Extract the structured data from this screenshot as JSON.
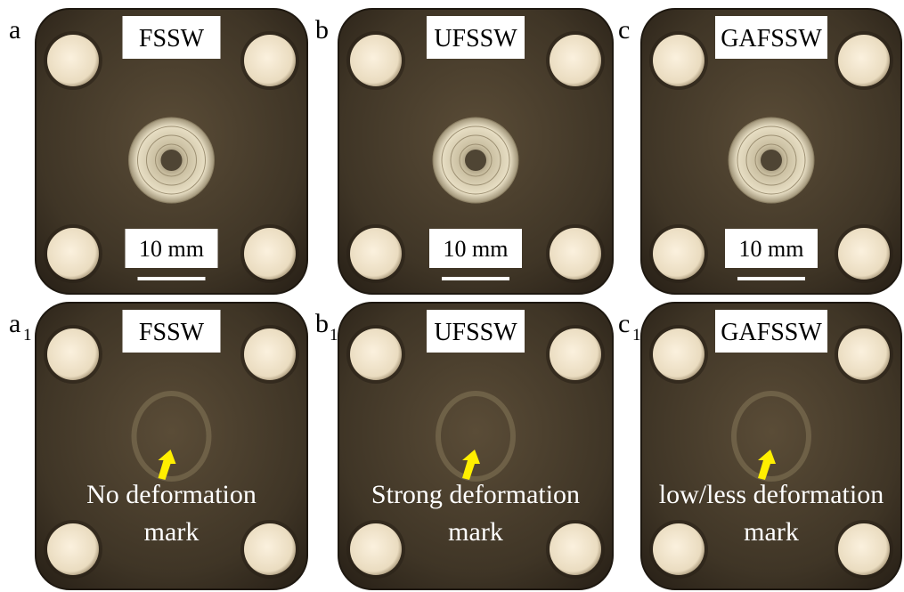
{
  "panels": [
    {
      "label": "a",
      "title": "FSSW",
      "scale": "10 mm"
    },
    {
      "label": "b",
      "title": "UFSSW",
      "scale": "10 mm"
    },
    {
      "label": "c",
      "title": "GAFSSW",
      "scale": "10 mm"
    },
    {
      "label": "a",
      "subscript": "1",
      "title": "FSSW",
      "annotation": [
        "No deformation",
        "mark"
      ]
    },
    {
      "label": "b",
      "subscript": "1",
      "title": "UFSSW",
      "annotation": [
        "Strong deformation",
        "mark"
      ]
    },
    {
      "label": "c",
      "subscript": "1",
      "title": "GAFSSW",
      "annotation": [
        "low/less deformation",
        "mark"
      ]
    }
  ]
}
